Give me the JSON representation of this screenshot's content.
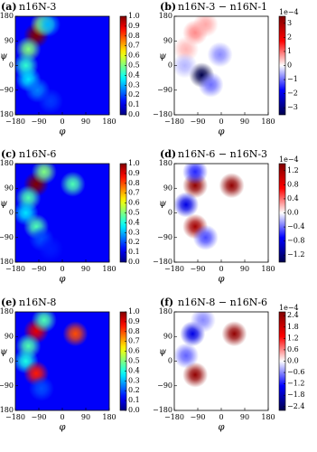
{
  "chart_data": [
    {
      "type": "heatmap",
      "label": "(a)",
      "title": "n16N-3",
      "xlabel": "φ",
      "ylabel": "ψ",
      "colormap": "jet",
      "xlim": [
        -180,
        180
      ],
      "ylim": [
        -180,
        180
      ],
      "xticks": [
        {
          "value": -180,
          "label": "−180"
        },
        {
          "value": -90,
          "label": "−90"
        },
        0,
        90,
        180
      ],
      "yticks": [
        {
          "value": -180,
          "label": "−180"
        },
        {
          "value": -90,
          "label": "−90"
        },
        0,
        90,
        180
      ],
      "clim": [
        0,
        1.0
      ],
      "cticks": [
        {
          "value": 0,
          "label": "0.0"
        },
        0.1,
        0.2,
        0.3,
        0.4,
        0.5,
        0.6,
        0.7,
        0.8,
        0.9,
        {
          "value": 1,
          "label": "1.0"
        }
      ],
      "x": [
        -100,
        -75,
        -130,
        -140,
        -130,
        -95,
        -55,
        -45
      ],
      "y": [
        110,
        150,
        60,
        0,
        -50,
        -90,
        150,
        -130
      ],
      "values": [
        1.0,
        0.55,
        0.5,
        0.42,
        0.35,
        0.25,
        0.3,
        0.18
      ]
    },
    {
      "type": "heatmap",
      "label": "(b)",
      "title": "n16N-3 − n16N-1",
      "xlabel": "φ",
      "ylabel": "ψ",
      "colormap": "seismic",
      "colorbar_label": "1e−4",
      "xlim": [
        -180,
        180
      ],
      "ylim": [
        -180,
        180
      ],
      "xticks": [
        {
          "value": -180,
          "label": "−180"
        },
        {
          "value": -90,
          "label": "−90"
        },
        0,
        90,
        180
      ],
      "yticks": [
        {
          "value": -180,
          "label": "−180"
        },
        {
          "value": -90,
          "label": "−90"
        },
        0,
        90,
        180
      ],
      "clim": [
        -3.5,
        3.5
      ],
      "cticks": [
        {
          "value": -3,
          "label": "−3"
        },
        {
          "value": -2,
          "label": "−2"
        },
        {
          "value": -1,
          "label": "−1"
        },
        0,
        1,
        2,
        3
      ],
      "x": [
        -100,
        -60,
        -135,
        -75,
        -40,
        -5,
        -140
      ],
      "y": [
        120,
        150,
        60,
        -35,
        -70,
        40,
        0
      ],
      "values": [
        0.8,
        0.6,
        0.5,
        -3.5,
        -1.0,
        -0.8,
        -0.5
      ]
    },
    {
      "type": "heatmap",
      "label": "(c)",
      "title": "n16N-6",
      "xlabel": "φ",
      "ylabel": "ψ",
      "colormap": "jet",
      "xlim": [
        -180,
        180
      ],
      "ylim": [
        -180,
        180
      ],
      "xticks": [
        {
          "value": -180,
          "label": "−180"
        },
        {
          "value": -90,
          "label": "−90"
        },
        0,
        90,
        180
      ],
      "yticks": [
        {
          "value": -180,
          "label": "−180"
        },
        {
          "value": -90,
          "label": "−90"
        },
        0,
        90,
        180
      ],
      "clim": [
        0,
        1.0
      ],
      "cticks": [
        {
          "value": 0,
          "label": "0.0"
        },
        0.1,
        0.2,
        0.3,
        0.4,
        0.5,
        0.6,
        0.7,
        0.8,
        0.9,
        {
          "value": 1,
          "label": "1.0"
        }
      ],
      "x": [
        -100,
        -70,
        -130,
        -140,
        -100,
        40,
        -80,
        -45
      ],
      "y": [
        105,
        150,
        55,
        0,
        -50,
        105,
        -95,
        -130
      ],
      "values": [
        1.0,
        0.5,
        0.45,
        0.35,
        0.45,
        0.45,
        0.2,
        0.15
      ]
    },
    {
      "type": "heatmap",
      "label": "(d)",
      "title": "n16N-6 − n16N-3",
      "xlabel": "φ",
      "ylabel": "ψ",
      "colormap": "seismic",
      "colorbar_label": "1e−4",
      "xlim": [
        -180,
        180
      ],
      "ylim": [
        -180,
        180
      ],
      "xticks": [
        {
          "value": -180,
          "label": "−180"
        },
        {
          "value": -90,
          "label": "−90"
        },
        0,
        90,
        180
      ],
      "yticks": [
        {
          "value": -180,
          "label": "−180"
        },
        {
          "value": -90,
          "label": "−90"
        },
        0,
        90,
        180
      ],
      "clim": [
        -1.4,
        1.4
      ],
      "cticks": [
        {
          "value": -1.2,
          "label": "−1.2"
        },
        {
          "value": -0.8,
          "label": "−0.8"
        },
        {
          "value": -0.4,
          "label": "−0.4"
        },
        {
          "value": 0,
          "label": "0.0"
        },
        0.4,
        0.8,
        1.2
      ],
      "x": [
        -100,
        40,
        -100,
        -135,
        -100,
        -60
      ],
      "y": [
        100,
        100,
        -50,
        30,
        150,
        -90
      ],
      "values": [
        1.3,
        1.3,
        1.2,
        -0.8,
        -0.6,
        -0.5
      ]
    },
    {
      "type": "heatmap",
      "label": "(e)",
      "title": "n16N-8",
      "xlabel": "φ",
      "ylabel": "ψ",
      "colormap": "jet",
      "xlim": [
        -180,
        180
      ],
      "ylim": [
        -180,
        180
      ],
      "xticks": [
        {
          "value": -180,
          "label": "−180"
        },
        {
          "value": -90,
          "label": "−90"
        },
        0,
        90,
        180
      ],
      "yticks": [
        {
          "value": -180,
          "label": "−180"
        },
        {
          "value": -90,
          "label": "−90"
        },
        0,
        90,
        180
      ],
      "clim": [
        0,
        1.0
      ],
      "cticks": [
        {
          "value": 0,
          "label": "0.0"
        },
        0.1,
        0.2,
        0.3,
        0.4,
        0.5,
        0.6,
        0.7,
        0.8,
        0.9,
        {
          "value": 1,
          "label": "1.0"
        }
      ],
      "x": [
        -100,
        -70,
        -130,
        -140,
        -100,
        50,
        -80
      ],
      "y": [
        110,
        150,
        55,
        0,
        -45,
        100,
        -100
      ],
      "values": [
        0.9,
        0.45,
        0.45,
        0.4,
        0.85,
        0.8,
        0.2
      ]
    },
    {
      "type": "heatmap",
      "label": "(f)",
      "title": "n16N-8 − n16N-6",
      "xlabel": "φ",
      "ylabel": "ψ",
      "colormap": "seismic",
      "colorbar_label": "1e−4",
      "xlim": [
        -180,
        180
      ],
      "ylim": [
        -180,
        180
      ],
      "xticks": [
        {
          "value": -180,
          "label": "−180"
        },
        {
          "value": -90,
          "label": "−90"
        },
        0,
        90,
        180
      ],
      "yticks": [
        {
          "value": -180,
          "label": "−180"
        },
        {
          "value": -90,
          "label": "−90"
        },
        0,
        90,
        180
      ],
      "clim": [
        -2.6,
        2.6
      ],
      "cticks": [
        {
          "value": -2.4,
          "label": "−2.4"
        },
        {
          "value": -1.8,
          "label": "−1.8"
        },
        {
          "value": -1.2,
          "label": "−1.2"
        },
        {
          "value": -0.6,
          "label": "−0.6"
        },
        {
          "value": 0,
          "label": "0.0"
        },
        0.6,
        1.2,
        1.8,
        2.4
      ],
      "x": [
        50,
        -100,
        -110,
        -135,
        -70
      ],
      "y": [
        100,
        -50,
        100,
        20,
        150
      ],
      "values": [
        2.4,
        2.4,
        -1.5,
        -0.8,
        -0.6
      ]
    }
  ]
}
